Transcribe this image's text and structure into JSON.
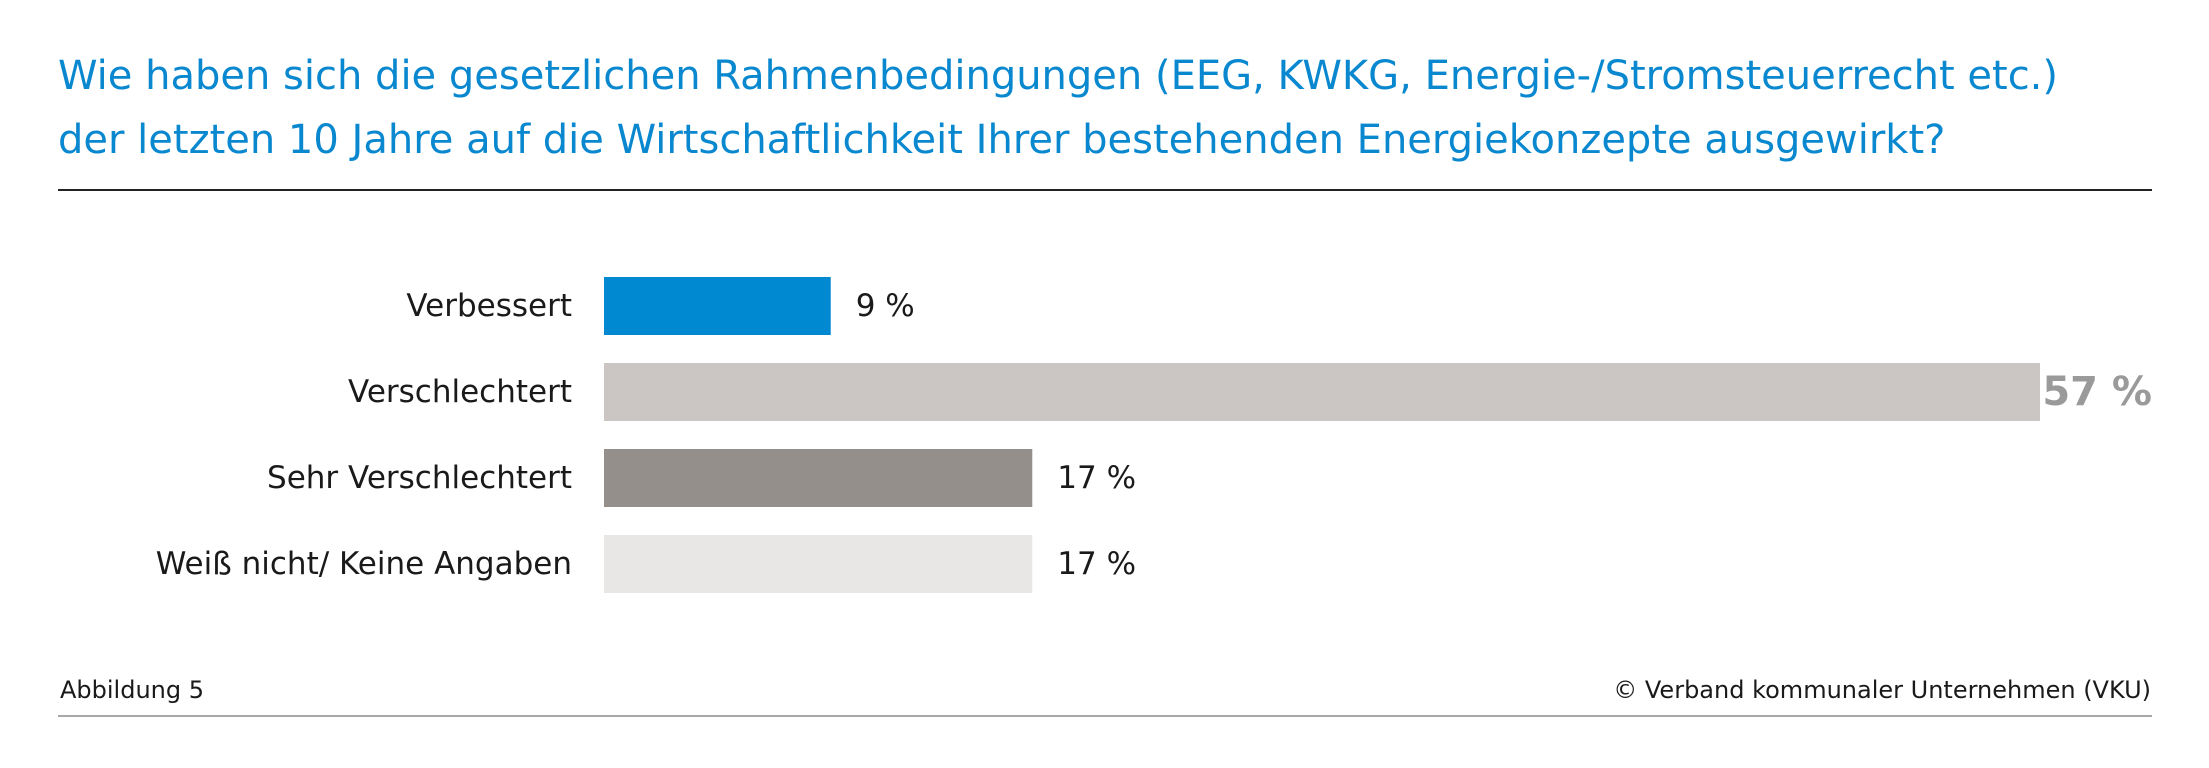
{
  "header": {
    "title_line1": "Wie haben sich die gesetzlichen Rahmenbedingungen (EEG, KWKG, Energie-/Stromsteuerrecht etc.)",
    "title_line2": "der letzten 10 Jahre auf die Wirtschaftlichkeit Ihrer bestehenden Energiekonzepte ausgewirkt?"
  },
  "footer": {
    "figure_label": "Abbildung 5",
    "copyright": "© Verband kommunaler Unternehmen (VKU)"
  },
  "chart_data": {
    "type": "bar",
    "orientation": "horizontal",
    "categories": [
      "Verbessert",
      "Verschlechtert",
      "Sehr Verschlechtert",
      "Weiß nicht/ Keine Angaben"
    ],
    "values": [
      9,
      57,
      17,
      17
    ],
    "value_labels": [
      "9 %",
      "57 %",
      "17 %",
      "17 %"
    ],
    "unit": "%",
    "colors": [
      "#0088d1",
      "#cbc6c3",
      "#958f8b",
      "#e8e7e6"
    ],
    "highlight_index": 1,
    "xlim": [
      0,
      57
    ],
    "grid": false,
    "legend": "none"
  }
}
